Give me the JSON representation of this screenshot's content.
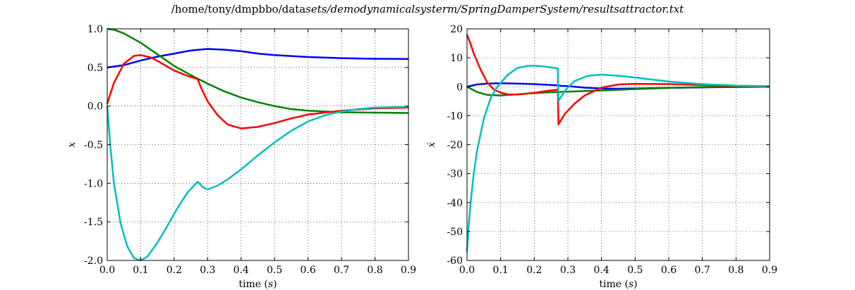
{
  "figure": {
    "title_main": "/home/tony/dmpbbo/data",
    "title_sub": "sets/demodynamicalsysterm/SpringDamperSystem/resultsattractor.txt"
  },
  "chart_data": [
    {
      "type": "line",
      "title": "",
      "xlabel_text": "time (",
      "xlabel_italic": "s",
      "xlabel_close": ")",
      "ylabel": "x",
      "xlim": [
        0,
        0.9
      ],
      "ylim": [
        -2.0,
        1.0
      ],
      "xticks": [
        "0.0",
        "0.1",
        "0.2",
        "0.3",
        "0.4",
        "0.5",
        "0.6",
        "0.7",
        "0.8",
        "0.9"
      ],
      "yticks": [
        "1.0",
        "0.5",
        "0.0",
        "-0.5",
        "-1.0",
        "-1.5",
        "-2.0"
      ],
      "grid": true,
      "series": [
        {
          "color": "#0000ff",
          "x": [
            0,
            0.05,
            0.1,
            0.15,
            0.2,
            0.25,
            0.3,
            0.35,
            0.4,
            0.45,
            0.5,
            0.6,
            0.7,
            0.8,
            0.9
          ],
          "y": [
            0.5,
            0.53,
            0.59,
            0.64,
            0.68,
            0.72,
            0.74,
            0.73,
            0.71,
            0.68,
            0.66,
            0.635,
            0.62,
            0.612,
            0.61
          ]
        },
        {
          "color": "#008000",
          "x": [
            0,
            0.02,
            0.05,
            0.1,
            0.15,
            0.2,
            0.25,
            0.3,
            0.35,
            0.4,
            0.45,
            0.5,
            0.55,
            0.6,
            0.7,
            0.8,
            0.9
          ],
          "y": [
            1.0,
            0.99,
            0.94,
            0.82,
            0.67,
            0.52,
            0.4,
            0.29,
            0.19,
            0.11,
            0.05,
            0.0,
            -0.04,
            -0.06,
            -0.08,
            -0.085,
            -0.09
          ]
        },
        {
          "color": "#ff0000",
          "x": [
            0,
            0.02,
            0.05,
            0.08,
            0.1,
            0.13,
            0.16,
            0.2,
            0.24,
            0.27,
            0.28,
            0.3,
            0.33,
            0.36,
            0.4,
            0.45,
            0.5,
            0.55,
            0.6,
            0.7,
            0.8,
            0.9
          ],
          "y": [
            0.03,
            0.3,
            0.55,
            0.65,
            0.66,
            0.63,
            0.56,
            0.46,
            0.39,
            0.35,
            0.24,
            0.06,
            -0.12,
            -0.24,
            -0.29,
            -0.27,
            -0.22,
            -0.16,
            -0.11,
            -0.06,
            -0.03,
            -0.02
          ]
        },
        {
          "color": "#00bfbf",
          "x": [
            0,
            0.01,
            0.02,
            0.04,
            0.06,
            0.08,
            0.1,
            0.12,
            0.15,
            0.18,
            0.21,
            0.24,
            0.27,
            0.285,
            0.3,
            0.33,
            0.36,
            0.4,
            0.45,
            0.5,
            0.55,
            0.6,
            0.65,
            0.7,
            0.75,
            0.8,
            0.9
          ],
          "y": [
            0,
            -0.55,
            -1.0,
            -1.52,
            -1.82,
            -1.97,
            -2.0,
            -1.95,
            -1.77,
            -1.55,
            -1.32,
            -1.12,
            -0.98,
            -1.05,
            -1.08,
            -1.03,
            -0.95,
            -0.82,
            -0.64,
            -0.47,
            -0.32,
            -0.2,
            -0.12,
            -0.07,
            -0.04,
            -0.02,
            -0.01
          ]
        }
      ]
    },
    {
      "type": "line",
      "title": "",
      "xlabel_text": "time (",
      "xlabel_italic": "s",
      "xlabel_close": ")",
      "ylabel": "ẋ",
      "xlim": [
        0,
        0.9
      ],
      "ylim": [
        -60,
        20
      ],
      "xticks": [
        "0.0",
        "0.1",
        "0.2",
        "0.3",
        "0.4",
        "0.5",
        "0.6",
        "0.7",
        "0.8",
        "0.9"
      ],
      "yticks": [
        "20",
        "10",
        "0",
        "-10",
        "-20",
        "-30",
        "-40",
        "-50",
        "-60"
      ],
      "grid": true,
      "series": [
        {
          "color": "#0000ff",
          "x": [
            0,
            0.03,
            0.06,
            0.1,
            0.15,
            0.2,
            0.25,
            0.27,
            0.28,
            0.3,
            0.35,
            0.4,
            0.45,
            0.5,
            0.6,
            0.7,
            0.8,
            0.9
          ],
          "y": [
            0,
            0.8,
            1.1,
            1.2,
            1.1,
            0.9,
            0.6,
            0.5,
            0.3,
            0.2,
            -0.3,
            -0.6,
            -0.7,
            -0.6,
            -0.4,
            -0.2,
            -0.1,
            0
          ]
        },
        {
          "color": "#008000",
          "x": [
            0,
            0.03,
            0.06,
            0.1,
            0.15,
            0.2,
            0.25,
            0.27,
            0.3,
            0.35,
            0.4,
            0.5,
            0.6,
            0.7,
            0.8,
            0.9
          ],
          "y": [
            0,
            -1.8,
            -2.8,
            -3.0,
            -2.6,
            -2.2,
            -1.9,
            -1.8,
            -1.7,
            -1.5,
            -1.3,
            -0.8,
            -0.4,
            -0.1,
            0,
            0
          ]
        },
        {
          "color": "#ff0000",
          "x": [
            0,
            0.01,
            0.02,
            0.04,
            0.06,
            0.08,
            0.1,
            0.12,
            0.15,
            0.2,
            0.24,
            0.27,
            0.272,
            0.29,
            0.32,
            0.35,
            0.4,
            0.45,
            0.5,
            0.6,
            0.7,
            0.8,
            0.9
          ],
          "y": [
            18,
            15,
            11.5,
            6,
            1.5,
            -1.0,
            -2.0,
            -2.6,
            -2.7,
            -2.1,
            -1.4,
            -1.0,
            -13,
            -9.5,
            -5.8,
            -3.0,
            -0.3,
            0.8,
            1.0,
            0.9,
            0.6,
            0.3,
            0.1
          ]
        },
        {
          "color": "#00bfbf",
          "x": [
            0,
            0.005,
            0.01,
            0.02,
            0.03,
            0.05,
            0.07,
            0.09,
            0.12,
            0.15,
            0.18,
            0.2,
            0.23,
            0.26,
            0.27,
            0.272,
            0.29,
            0.32,
            0.36,
            0.4,
            0.45,
            0.5,
            0.55,
            0.6,
            0.7,
            0.8,
            0.9
          ],
          "y": [
            -57,
            -48,
            -41,
            -30,
            -22,
            -11,
            -4,
            0,
            4,
            6.5,
            7.2,
            7.3,
            7.0,
            6.5,
            6.3,
            -5.0,
            -1.5,
            2.0,
            3.8,
            4.2,
            3.8,
            3.2,
            2.5,
            1.8,
            0.9,
            0.4,
            0.2
          ]
        }
      ]
    }
  ]
}
